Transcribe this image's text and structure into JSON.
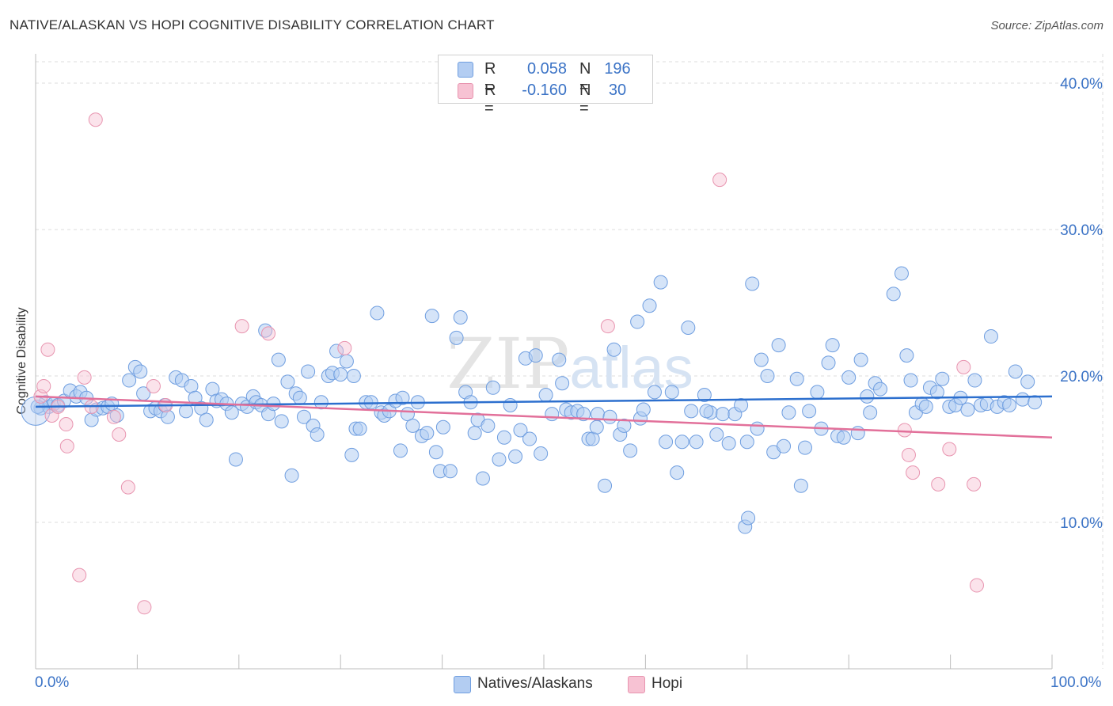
{
  "title": "NATIVE/ALASKAN VS HOPI COGNITIVE DISABILITY CORRELATION CHART",
  "source": "Source: ZipAtlas.com",
  "watermark": "ZIPatlas",
  "colors": {
    "blue_fill": "#b3cdf2",
    "blue_stroke": "#6f9ee0",
    "blue_line": "#2c6fce",
    "pink_fill": "#f7c2d3",
    "pink_stroke": "#e895b0",
    "pink_line": "#e2709a",
    "tick_text": "#3b73c6",
    "grid": "#dcdcdc"
  },
  "legend": {
    "rows": [
      {
        "r_label": "R =",
        "r_value": "0.058",
        "n_label": "N =",
        "n_value": "196"
      },
      {
        "r_label": "R =",
        "r_value": "-0.160",
        "n_label": "N =",
        "n_value": "30"
      }
    ]
  },
  "chart_data": {
    "type": "scatter",
    "title": "NATIVE/ALASKAN VS HOPI COGNITIVE DISABILITY CORRELATION CHART",
    "xlabel": "",
    "ylabel": "Cognitive Disability",
    "xlim": [
      0,
      100
    ],
    "ylim": [
      0,
      42
    ],
    "x_tick_labels": [
      "0.0%",
      "100.0%"
    ],
    "y_ticks": [
      10,
      20,
      30,
      40
    ],
    "y_tick_labels": [
      "10.0%",
      "20.0%",
      "30.0%",
      "40.0%"
    ],
    "grid": true,
    "legend_position": "top-center",
    "series": [
      {
        "name": "Natives/Alaskans",
        "color": "#6f9ee0",
        "trend": {
          "x": [
            0,
            100
          ],
          "y": [
            17.9,
            18.6
          ]
        },
        "points": [
          [
            0.5,
            17.8
          ],
          [
            1.0,
            18.2
          ],
          [
            1.3,
            17.9
          ],
          [
            1.8,
            18.1
          ],
          [
            2.2,
            18.0
          ],
          [
            2.8,
            18.3
          ],
          [
            3.4,
            19.0
          ],
          [
            4.0,
            18.6
          ],
          [
            4.4,
            18.9
          ],
          [
            5.0,
            18.5
          ],
          [
            5.5,
            17.0
          ],
          [
            6.0,
            17.7
          ],
          [
            6.6,
            17.8
          ],
          [
            7.1,
            17.9
          ],
          [
            7.5,
            18.1
          ],
          [
            8.0,
            17.3
          ],
          [
            9.2,
            19.7
          ],
          [
            9.8,
            20.6
          ],
          [
            10.3,
            20.3
          ],
          [
            10.6,
            18.8
          ],
          [
            11.3,
            17.6
          ],
          [
            11.8,
            17.8
          ],
          [
            12.3,
            17.6
          ],
          [
            12.7,
            18.0
          ],
          [
            13.0,
            17.2
          ],
          [
            13.8,
            19.9
          ],
          [
            14.4,
            19.7
          ],
          [
            14.8,
            17.6
          ],
          [
            15.3,
            19.3
          ],
          [
            15.7,
            18.5
          ],
          [
            16.3,
            17.8
          ],
          [
            16.8,
            17.0
          ],
          [
            17.4,
            19.1
          ],
          [
            17.8,
            18.3
          ],
          [
            18.3,
            18.4
          ],
          [
            18.8,
            18.1
          ],
          [
            19.3,
            17.5
          ],
          [
            19.7,
            14.3
          ],
          [
            20.3,
            18.1
          ],
          [
            20.8,
            17.9
          ],
          [
            21.4,
            18.6
          ],
          [
            21.7,
            18.2
          ],
          [
            22.2,
            18.0
          ],
          [
            22.6,
            23.1
          ],
          [
            22.9,
            17.4
          ],
          [
            23.4,
            18.1
          ],
          [
            23.9,
            21.1
          ],
          [
            24.2,
            16.9
          ],
          [
            24.8,
            19.6
          ],
          [
            25.2,
            13.2
          ],
          [
            25.6,
            18.8
          ],
          [
            26.0,
            18.5
          ],
          [
            26.4,
            17.2
          ],
          [
            26.8,
            20.3
          ],
          [
            27.3,
            16.6
          ],
          [
            27.7,
            16.0
          ],
          [
            28.1,
            18.2
          ],
          [
            28.8,
            20.0
          ],
          [
            29.2,
            20.2
          ],
          [
            29.6,
            21.7
          ],
          [
            30.0,
            20.1
          ],
          [
            30.6,
            21.0
          ],
          [
            31.1,
            14.6
          ],
          [
            31.5,
            16.4
          ],
          [
            31.9,
            16.4
          ],
          [
            32.5,
            18.2
          ],
          [
            33.0,
            18.2
          ],
          [
            33.6,
            24.3
          ],
          [
            34.0,
            17.5
          ],
          [
            34.3,
            17.3
          ],
          [
            34.8,
            17.6
          ],
          [
            35.4,
            18.3
          ],
          [
            35.9,
            14.9
          ],
          [
            36.1,
            18.5
          ],
          [
            36.6,
            17.4
          ],
          [
            37.1,
            16.6
          ],
          [
            37.6,
            18.2
          ],
          [
            38.0,
            15.9
          ],
          [
            38.5,
            16.1
          ],
          [
            39.0,
            24.1
          ],
          [
            39.4,
            14.8
          ],
          [
            39.8,
            13.5
          ],
          [
            40.8,
            13.5
          ],
          [
            41.4,
            22.6
          ],
          [
            41.8,
            24.0
          ],
          [
            42.3,
            18.9
          ],
          [
            42.8,
            18.2
          ],
          [
            43.2,
            16.1
          ],
          [
            43.5,
            17.0
          ],
          [
            44.0,
            13.0
          ],
          [
            44.5,
            16.6
          ],
          [
            45.0,
            19.2
          ],
          [
            45.6,
            14.3
          ],
          [
            46.1,
            15.8
          ],
          [
            46.7,
            18.0
          ],
          [
            47.2,
            14.5
          ],
          [
            47.7,
            16.3
          ],
          [
            48.2,
            21.2
          ],
          [
            48.6,
            15.7
          ],
          [
            49.2,
            21.4
          ],
          [
            49.7,
            14.7
          ],
          [
            50.2,
            18.7
          ],
          [
            50.8,
            17.4
          ],
          [
            51.5,
            21.1
          ],
          [
            51.8,
            19.5
          ],
          [
            52.2,
            17.7
          ],
          [
            52.7,
            17.5
          ],
          [
            53.3,
            17.6
          ],
          [
            53.9,
            17.4
          ],
          [
            54.4,
            15.7
          ],
          [
            54.8,
            15.7
          ],
          [
            55.3,
            17.4
          ],
          [
            56.0,
            12.5
          ],
          [
            56.5,
            17.2
          ],
          [
            56.9,
            21.8
          ],
          [
            57.5,
            16.0
          ],
          [
            57.9,
            16.6
          ],
          [
            58.5,
            14.9
          ],
          [
            59.2,
            23.7
          ],
          [
            59.5,
            17.1
          ],
          [
            59.8,
            17.7
          ],
          [
            60.4,
            24.8
          ],
          [
            60.9,
            18.9
          ],
          [
            61.5,
            26.4
          ],
          [
            62.0,
            15.5
          ],
          [
            62.6,
            18.9
          ],
          [
            63.1,
            13.4
          ],
          [
            63.6,
            15.5
          ],
          [
            64.2,
            23.3
          ],
          [
            64.5,
            17.6
          ],
          [
            65.0,
            15.5
          ],
          [
            65.8,
            18.7
          ],
          [
            66.4,
            17.5
          ],
          [
            67.0,
            16.0
          ],
          [
            67.6,
            17.4
          ],
          [
            68.2,
            15.4
          ],
          [
            68.8,
            17.4
          ],
          [
            69.4,
            18.0
          ],
          [
            70.0,
            15.5
          ],
          [
            70.5,
            26.3
          ],
          [
            71.0,
            16.4
          ],
          [
            71.4,
            21.1
          ],
          [
            72.0,
            20.0
          ],
          [
            72.6,
            14.8
          ],
          [
            73.1,
            22.1
          ],
          [
            73.6,
            15.2
          ],
          [
            74.1,
            17.5
          ],
          [
            74.9,
            19.8
          ],
          [
            75.3,
            12.5
          ],
          [
            75.7,
            15.1
          ],
          [
            76.1,
            17.6
          ],
          [
            76.9,
            18.9
          ],
          [
            77.3,
            16.4
          ],
          [
            78.0,
            20.9
          ],
          [
            78.4,
            22.1
          ],
          [
            78.9,
            15.9
          ],
          [
            79.5,
            15.8
          ],
          [
            80.0,
            19.9
          ],
          [
            80.9,
            16.1
          ],
          [
            81.2,
            21.1
          ],
          [
            81.8,
            18.6
          ],
          [
            82.1,
            17.5
          ],
          [
            82.6,
            19.5
          ],
          [
            83.1,
            19.1
          ],
          [
            84.4,
            25.6
          ],
          [
            85.2,
            27.0
          ],
          [
            85.7,
            21.4
          ],
          [
            86.1,
            19.7
          ],
          [
            86.6,
            17.5
          ],
          [
            87.2,
            18.1
          ],
          [
            87.6,
            17.9
          ],
          [
            88.0,
            19.2
          ],
          [
            88.7,
            18.9
          ],
          [
            89.2,
            19.8
          ],
          [
            89.9,
            17.9
          ],
          [
            90.5,
            18.0
          ],
          [
            91.0,
            18.5
          ],
          [
            91.7,
            17.7
          ],
          [
            92.4,
            19.7
          ],
          [
            93.0,
            18.0
          ],
          [
            93.6,
            18.1
          ],
          [
            94.0,
            22.7
          ],
          [
            94.6,
            17.9
          ],
          [
            95.3,
            18.2
          ],
          [
            95.8,
            18.0
          ],
          [
            96.4,
            20.3
          ],
          [
            97.1,
            18.4
          ],
          [
            97.6,
            19.6
          ],
          [
            98.3,
            18.2
          ],
          [
            0.2,
            17.9
          ],
          [
            69.8,
            9.7
          ],
          [
            70.1,
            10.3
          ],
          [
            31.3,
            20.0
          ],
          [
            40.1,
            16.5
          ],
          [
            55.2,
            16.5
          ],
          [
            66.0,
            17.6
          ]
        ]
      },
      {
        "name": "Hopi",
        "color": "#e895b0",
        "trend": {
          "x": [
            0,
            100
          ],
          "y": [
            18.6,
            15.8
          ]
        },
        "points": [
          [
            0.5,
            18.6
          ],
          [
            0.8,
            19.3
          ],
          [
            1.2,
            21.8
          ],
          [
            1.6,
            17.3
          ],
          [
            2.2,
            17.9
          ],
          [
            3.0,
            16.7
          ],
          [
            3.1,
            15.2
          ],
          [
            4.3,
            6.4
          ],
          [
            4.8,
            19.9
          ],
          [
            5.9,
            37.5
          ],
          [
            7.7,
            17.2
          ],
          [
            8.2,
            16.0
          ],
          [
            9.1,
            12.4
          ],
          [
            10.7,
            4.2
          ],
          [
            11.6,
            19.3
          ],
          [
            12.8,
            18.0
          ],
          [
            20.3,
            23.4
          ],
          [
            22.9,
            22.9
          ],
          [
            30.4,
            21.9
          ],
          [
            56.3,
            23.4
          ],
          [
            67.3,
            33.4
          ],
          [
            85.5,
            16.3
          ],
          [
            85.9,
            14.6
          ],
          [
            86.3,
            13.4
          ],
          [
            88.8,
            12.6
          ],
          [
            89.9,
            15.0
          ],
          [
            91.3,
            20.6
          ],
          [
            92.3,
            12.6
          ],
          [
            92.6,
            5.7
          ],
          [
            5.5,
            17.9
          ]
        ]
      }
    ]
  },
  "bottom_legend": [
    {
      "label": "Natives/Alaskans",
      "color_fill": "#b3cdf2",
      "color_stroke": "#6f9ee0"
    },
    {
      "label": "Hopi",
      "color_fill": "#f7c2d3",
      "color_stroke": "#e895b0"
    }
  ]
}
